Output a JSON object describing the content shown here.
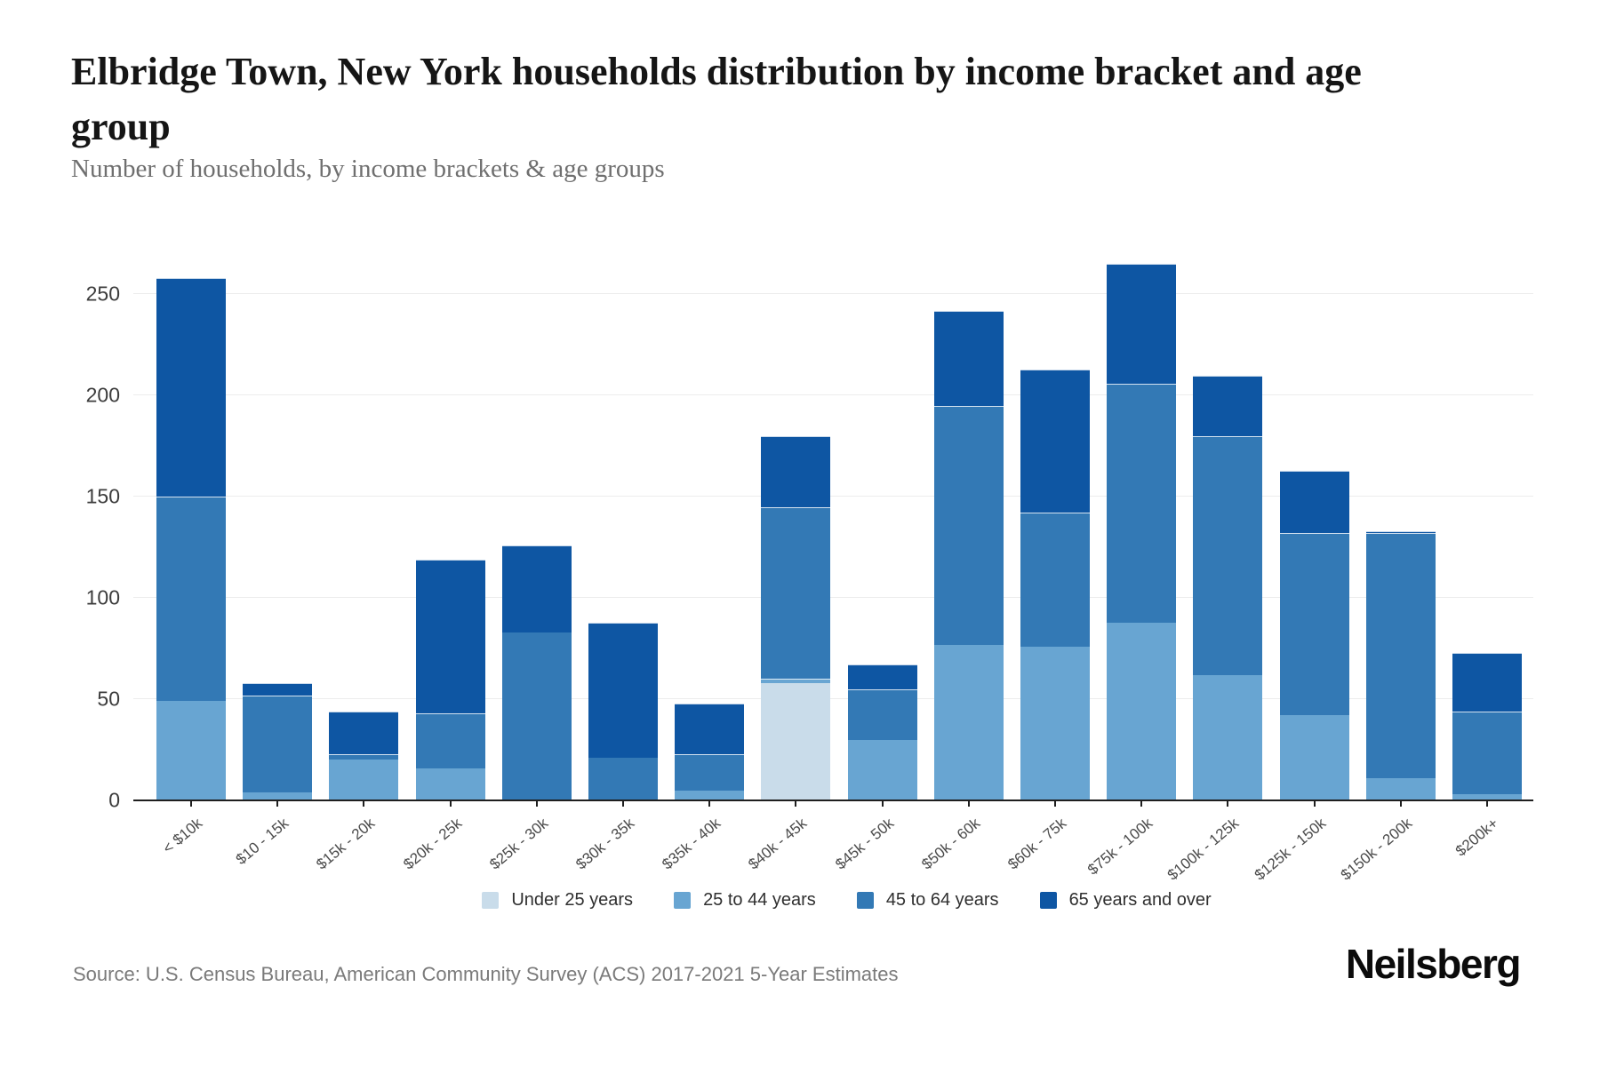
{
  "header": {
    "title": "Elbridge Town, New York households distribution by income bracket and age group",
    "subtitle": "Number of households, by income brackets & age groups"
  },
  "footer": {
    "source": "Source: U.S. Census Bureau, American Community Survey (ACS) 2017-2021 5-Year Estimates",
    "logo": "Neilsberg"
  },
  "chart_data": {
    "type": "bar",
    "stacked": true,
    "title": "Elbridge Town, New York households distribution by income bracket and age group",
    "subtitle": "Number of households, by income brackets & age groups",
    "xlabel": "",
    "ylabel": "Number of households",
    "categories": [
      "< $10k",
      "$10 - 15k",
      "$15k - 20k",
      "$20k - 25k",
      "$25k - 30k",
      "$30k - 35k",
      "$35k - 40k",
      "$40k - 45k",
      "$45k - 50k",
      "$50k - 60k",
      "$60k - 75k",
      "$75k - 100k",
      "$100k - 125k",
      "$125k - 150k",
      "$150k - 200k",
      "$200k+"
    ],
    "series": [
      {
        "name": "Under 25 years",
        "color": "#c9dcea",
        "values": [
          0,
          0,
          0,
          0,
          0,
          0,
          0,
          58,
          0,
          0,
          0,
          0,
          0,
          0,
          0,
          0
        ]
      },
      {
        "name": "25 to 44 years",
        "color": "#68a5d2",
        "values": [
          49,
          4,
          20,
          16,
          0,
          0,
          5,
          2,
          30,
          77,
          76,
          88,
          62,
          42,
          11,
          3
        ]
      },
      {
        "name": "45 to 64 years",
        "color": "#3379b5",
        "values": [
          101,
          48,
          3,
          27,
          83,
          21,
          18,
          85,
          25,
          118,
          66,
          118,
          118,
          90,
          121,
          41
        ]
      },
      {
        "name": "65 years and over",
        "color": "#0e56a3",
        "values": [
          108,
          6,
          21,
          76,
          43,
          67,
          25,
          35,
          12,
          47,
          71,
          59,
          30,
          31,
          1,
          29
        ]
      }
    ],
    "totals": [
      258,
      58,
      44,
      119,
      126,
      88,
      48,
      180,
      67,
      242,
      213,
      265,
      210,
      163,
      133,
      73
    ],
    "yticks": [
      0,
      50,
      100,
      150,
      200,
      250
    ],
    "ylim": [
      0,
      280
    ],
    "grid": "horizontal",
    "grid_color": "#ececec",
    "axis_color": "#1f1f1f",
    "legend_position": "bottom"
  }
}
